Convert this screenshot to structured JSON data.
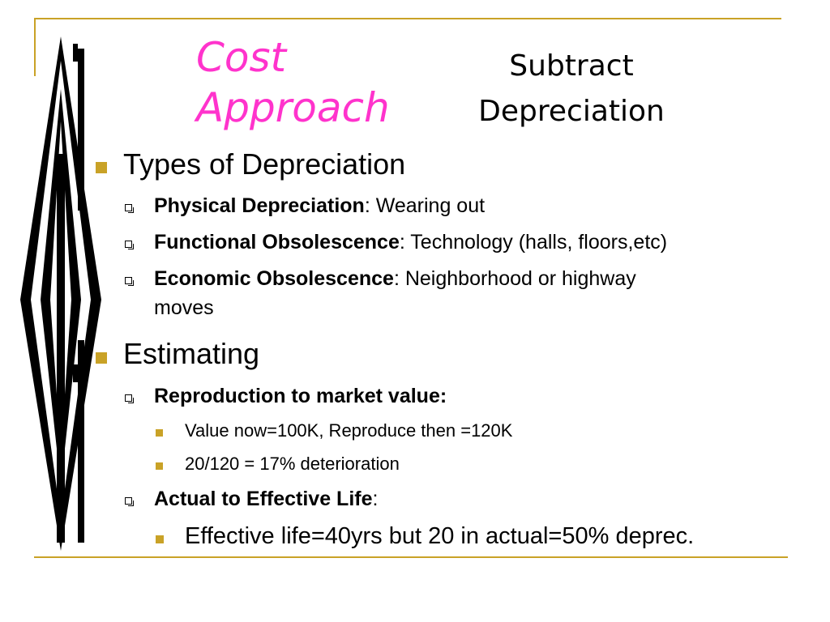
{
  "title": {
    "line1": "Cost",
    "line2": "Approach"
  },
  "subtitle": {
    "line1": "Subtract",
    "line2": "Depreciation"
  },
  "sections": [
    {
      "heading": "Types of Depreciation",
      "items": [
        {
          "bold": "Physical Depreciation",
          "text": ": Wearing out"
        },
        {
          "bold": "Functional Obsolescence",
          "text": ": Technology (halls, floors,etc)"
        },
        {
          "bold": "Economic Obsolescence",
          "text": ": Neighborhood or highway",
          "cont": "moves"
        }
      ]
    },
    {
      "heading": "Estimating",
      "items": [
        {
          "bold": "Reproduction to market value:",
          "text": "",
          "sub": [
            "Value now=100K, Reproduce then =120K",
            "20/120 = 17% deterioration"
          ]
        },
        {
          "bold": "Actual to Effective Life",
          "text": ":",
          "sub": [
            "Effective life=40yrs but 20 in actual=50% deprec."
          ]
        }
      ]
    }
  ],
  "colors": {
    "title": "#ff33cc",
    "accent": "#c9a227",
    "text": "#000000"
  }
}
